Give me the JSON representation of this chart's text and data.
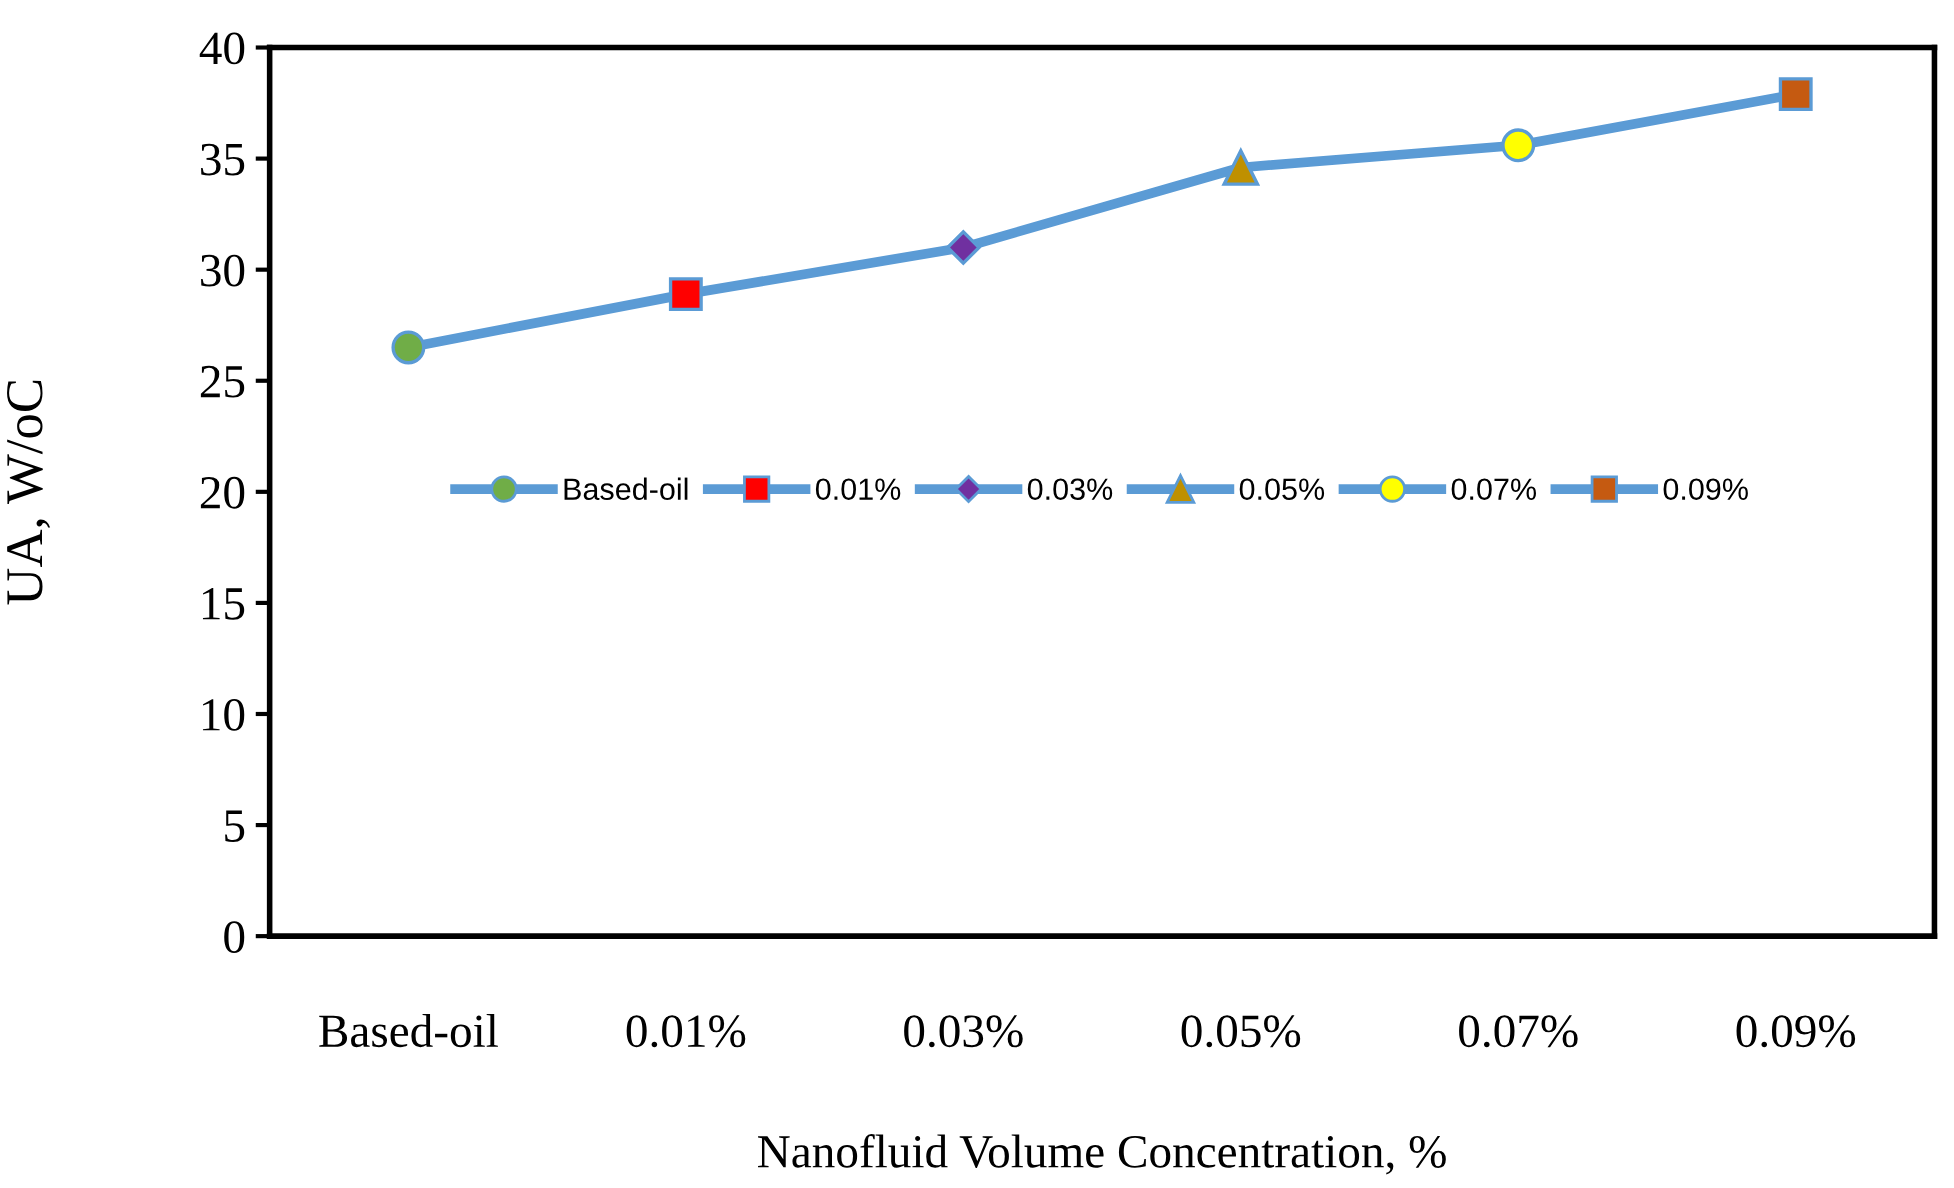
{
  "chart_data": {
    "type": "line",
    "xlabel": "Nanofluid Volume Concentration, %",
    "ylabel": "UA, W/oC",
    "categories": [
      "Based-oil",
      "0.01%",
      "0.03%",
      "0.05%",
      "0.07%",
      "0.09%"
    ],
    "ylim": [
      0,
      40
    ],
    "yticks": [
      0,
      5,
      10,
      15,
      20,
      25,
      30,
      35,
      40
    ],
    "grid": false,
    "legend": "center",
    "line_style": "solid",
    "series": [
      {
        "color": "#5b9bd5",
        "marker": "none",
        "values": [
          26.5,
          28.9,
          31.0,
          34.6,
          35.6,
          37.9
        ]
      },
      {
        "type": "scatter",
        "name": "Based-oil",
        "color": "#70ad47",
        "marker": "circle",
        "values": [
          26.5,
          null,
          null,
          null,
          null,
          null
        ]
      },
      {
        "type": "scatter",
        "name": "0.01%",
        "color": "#ff0000",
        "marker": "square",
        "values": [
          null,
          28.9,
          null,
          null,
          null,
          null
        ]
      },
      {
        "type": "scatter",
        "name": "0.03%",
        "color": "#7030a0",
        "marker": "diamond",
        "values": [
          null,
          null,
          31.0,
          null,
          null,
          null
        ]
      },
      {
        "type": "scatter",
        "name": "0.05%",
        "color": "#bf9000",
        "marker": "triangle",
        "values": [
          null,
          null,
          null,
          34.6,
          null,
          null
        ]
      },
      {
        "type": "scatter",
        "name": "0.07%",
        "color": "#ffff00",
        "marker": "circle",
        "values": [
          null,
          null,
          null,
          null,
          35.6,
          null
        ]
      },
      {
        "type": "scatter",
        "name": "0.09%",
        "color": "#c55a11",
        "marker": "square",
        "values": [
          null,
          null,
          null,
          null,
          null,
          37.9
        ]
      }
    ]
  }
}
